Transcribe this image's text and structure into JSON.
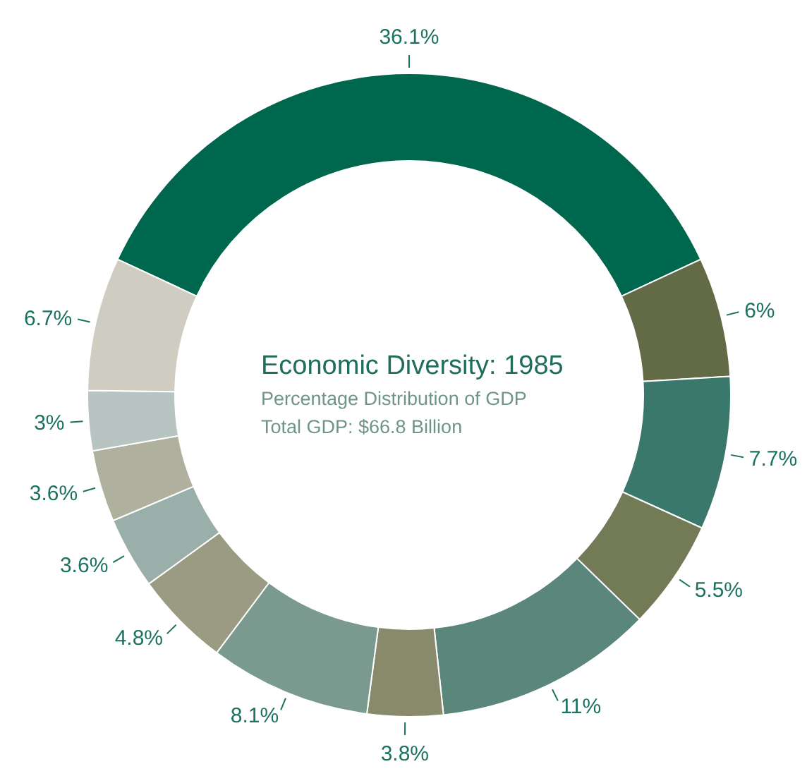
{
  "chart_data": {
    "type": "donut",
    "title": "Economic Diversity: 1985",
    "subtitle": "Percentage Distribution of GDP",
    "annotations": [
      "Total GDP: $66.8 Billion"
    ],
    "categories": [
      null,
      null,
      null,
      null,
      null,
      null,
      null,
      null,
      null,
      null,
      null,
      null
    ],
    "values": [
      36.1,
      6,
      7.7,
      5.5,
      11,
      3.8,
      8.1,
      4.8,
      3.6,
      3.6,
      3,
      6.7
    ],
    "value_labels": [
      "36.1%",
      "6%",
      "7.7%",
      "5.5%",
      "11%",
      "3.8%",
      "8.1%",
      "4.8%",
      "3.6%",
      "3.6%",
      "3%",
      "6.7%"
    ],
    "colors": [
      "#00674f",
      "#626b45",
      "#3a786c",
      "#737a56",
      "#5b867c",
      "#898a6c",
      "#7a9a8f",
      "#9b9b84",
      "#9aafa9",
      "#b0b09f",
      "#b8c4c1",
      "#cfcdc1"
    ],
    "legend": false
  }
}
